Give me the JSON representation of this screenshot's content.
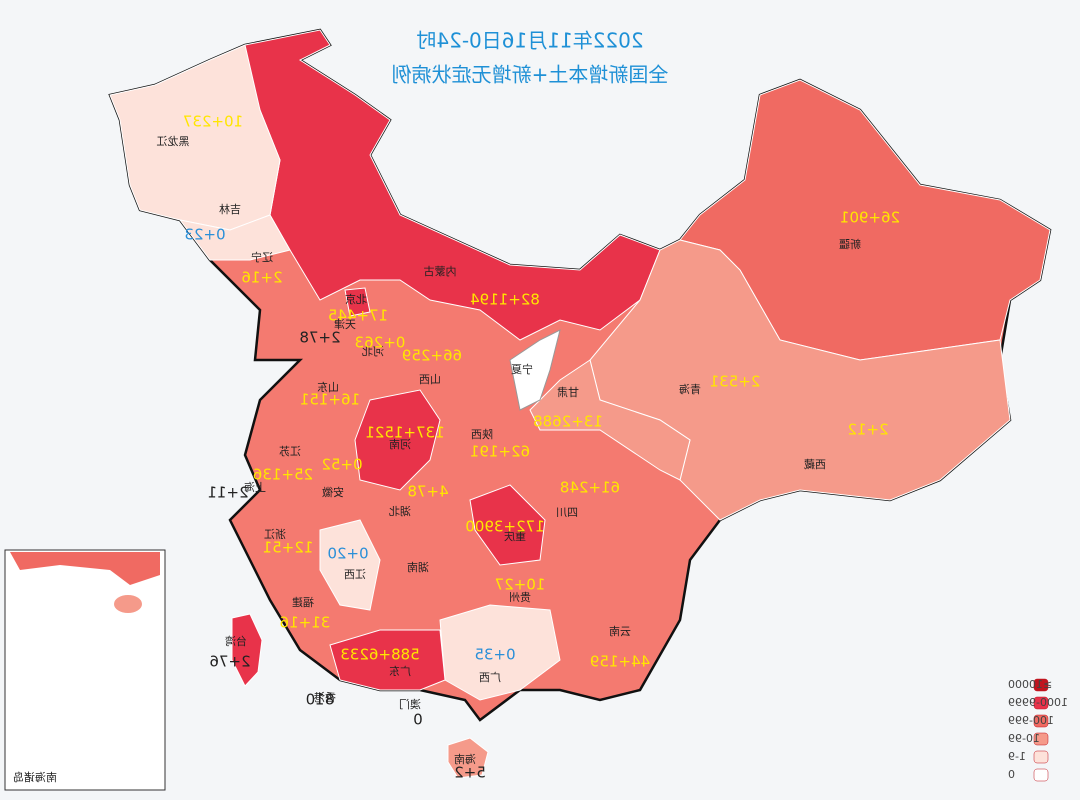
{
  "title": {
    "line1": "2022年11月16日0-24时",
    "line2": "全国新增本土+新增无症状病例"
  },
  "regions": [
    {
      "name": "黑龙江",
      "count": "10+237"
    },
    {
      "name": "吉林",
      "count": "0+23"
    },
    {
      "name": "辽宁",
      "count": "2+16"
    },
    {
      "name": "内蒙古",
      "count": "82+1194"
    },
    {
      "name": "北京",
      "count": "17+445"
    },
    {
      "name": "天津",
      "count": "2+78"
    },
    {
      "name": "河北",
      "count": "0+263"
    },
    {
      "name": "山西",
      "count": "66+259"
    },
    {
      "name": "宁夏"
    },
    {
      "name": "山东",
      "count": "16+151"
    },
    {
      "name": "甘肃",
      "count": "13+2688"
    },
    {
      "name": "青海",
      "count": "2+531"
    },
    {
      "name": "新疆",
      "count": "26+901"
    },
    {
      "name": "西藏",
      "count": "2+12"
    },
    {
      "name": "河南",
      "count": "137+1521"
    },
    {
      "name": "陕西",
      "count": "62+191"
    },
    {
      "name": "江苏",
      "count": "25+136"
    },
    {
      "name": "安徽",
      "count": "0+52"
    },
    {
      "name": "上海",
      "count": "2+11"
    },
    {
      "name": "湖北",
      "count": "4+78"
    },
    {
      "name": "四川",
      "count": "61+248"
    },
    {
      "name": "重庆",
      "count": "172+3900"
    },
    {
      "name": "浙江",
      "count": "12+51"
    },
    {
      "name": "江西",
      "count": "0+20"
    },
    {
      "name": "湖南"
    },
    {
      "name": "贵州",
      "count": "10+27"
    },
    {
      "name": "福建",
      "count": "31+16"
    },
    {
      "name": "云南",
      "count": "44+159"
    },
    {
      "name": "广西",
      "count": "0+35"
    },
    {
      "name": "广东",
      "count": "588+6233"
    },
    {
      "name": "台湾",
      "count": "2+76"
    },
    {
      "name": "香港",
      "count": "810"
    },
    {
      "name": "澳门",
      "count": "0"
    },
    {
      "name": "海南",
      "count": "5+2"
    }
  ],
  "legend": [
    {
      "label": "≥10000",
      "color": "#c0141f"
    },
    {
      "label": "1000-9999",
      "color": "#e8334a"
    },
    {
      "label": "100-999",
      "color": "#f06a62"
    },
    {
      "label": "10-99",
      "color": "#f59a8a"
    },
    {
      "label": "1-9",
      "color": "#fde2da"
    },
    {
      "label": "0",
      "color": "#ffffff"
    }
  ],
  "inset": {
    "label": "南海诸岛"
  }
}
